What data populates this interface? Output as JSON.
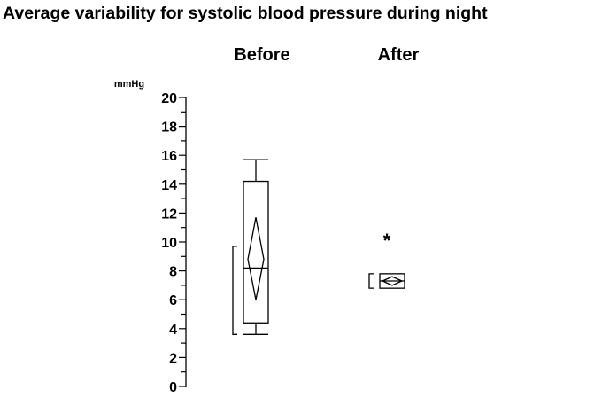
{
  "title": "Average variability for systolic blood pressure during night",
  "chart_data": {
    "type": "box",
    "title": "Average variability for systolic blood pressure during night",
    "ylabel": "mmHg",
    "ylim": [
      0,
      20
    ],
    "yticks": [
      0,
      2,
      4,
      6,
      8,
      10,
      12,
      14,
      16,
      18,
      20
    ],
    "categories": [
      "Before",
      "After"
    ],
    "boxes": [
      {
        "category": "Before",
        "whisker_low": 3.6,
        "q1": 4.4,
        "median": 8.2,
        "q3": 14.2,
        "whisker_high": 15.7,
        "mean": 8.8,
        "mean_ci_low": 6.0,
        "mean_ci_high": 11.7,
        "bracket_low": 3.6,
        "bracket_high": 9.7
      },
      {
        "category": "After",
        "whisker_low": 6.8,
        "q1": 6.8,
        "median": 7.3,
        "q3": 7.8,
        "whisker_high": 7.8,
        "mean": 7.3,
        "mean_ci_low": 7.0,
        "mean_ci_high": 7.6,
        "bracket_low": 6.8,
        "bracket_high": 7.8,
        "annotation": "*"
      }
    ]
  }
}
